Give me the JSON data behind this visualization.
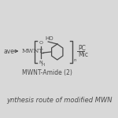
{
  "bg_color": "#e8e8e8",
  "title_text": "MWNT-Amide (2)",
  "caption_text": "ynthesis route of modified MWN",
  "arrow_label_left": "ave",
  "structure_label": "MWNT",
  "subscript_n": "n",
  "right_label1": "PC",
  "right_label2": "Mic",
  "text_color": "#4a4a4a",
  "title_fontsize": 5.5,
  "caption_fontsize": 6.0,
  "struct_fontsize": 5.5,
  "fig_bg": "#d8d8d8"
}
